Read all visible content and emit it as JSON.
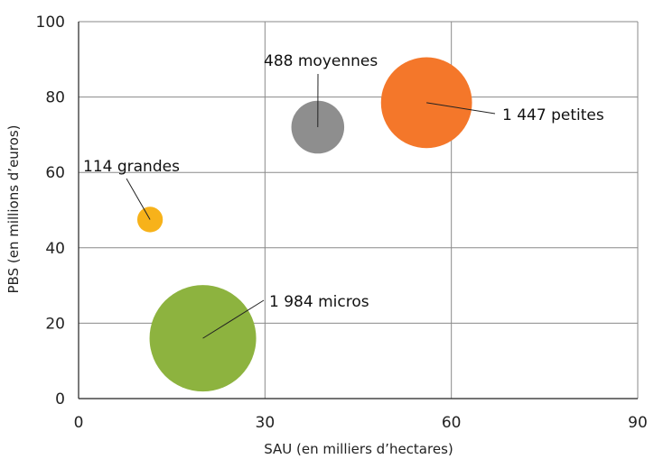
{
  "chart_data": {
    "type": "scatter",
    "xlabel": "SAU (en milliers d’hectares)",
    "ylabel": "PBS  (en millions d’euros)",
    "xlim": [
      0,
      90
    ],
    "ylim": [
      0,
      100
    ],
    "xticks": [
      0,
      30,
      60,
      90
    ],
    "yticks": [
      0,
      20,
      40,
      60,
      80,
      100
    ],
    "grid": true,
    "points": [
      {
        "label": "114 grandes",
        "count": 114,
        "x": 11.5,
        "y": 47.5,
        "color": "#f7b21a"
      },
      {
        "label": "488 moyennes",
        "count": 488,
        "x": 38.5,
        "y": 72,
        "color": "#8e8e8e"
      },
      {
        "label": "1 447 petites",
        "count": 1447,
        "x": 56,
        "y": 78.5,
        "color": "#f4772a"
      },
      {
        "label": "1 984 micros",
        "count": 1984,
        "x": 20,
        "y": 16,
        "color": "#8db33f"
      }
    ]
  }
}
